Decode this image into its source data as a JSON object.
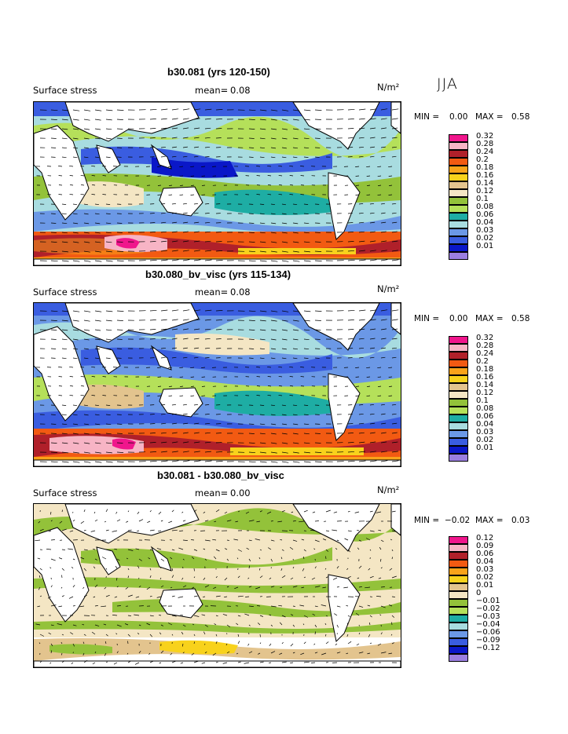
{
  "season": "JJA",
  "panels": [
    {
      "title": "b30.081 (yrs 120-150)",
      "field_label": "Surface stress",
      "mean_label": "mean=",
      "mean_value": "0.08",
      "units": "N/m²",
      "min_label": "MIN =",
      "min_value": "0.00",
      "max_label": "MAX =",
      "max_value": "0.58",
      "legend": [
        {
          "label": "0.32",
          "color": "#f0168c"
        },
        {
          "label": "0.28",
          "color": "#f7b4c5"
        },
        {
          "label": "0.24",
          "color": "#b0202a"
        },
        {
          "label": "0.2",
          "color": "#f25a12"
        },
        {
          "label": "0.18",
          "color": "#f9a31a"
        },
        {
          "label": "0.16",
          "color": "#f8d21c"
        },
        {
          "label": "0.14",
          "color": "#e3c48e"
        },
        {
          "label": "0.12",
          "color": "#f4e6c4"
        },
        {
          "label": "0.1",
          "color": "#93c23a"
        },
        {
          "label": "0.08",
          "color": "#b5e05a"
        },
        {
          "label": "0.06",
          "color": "#1eada4"
        },
        {
          "label": "0.04",
          "color": "#a8dce0"
        },
        {
          "label": "0.03",
          "color": "#6b98e6"
        },
        {
          "label": "0.02",
          "color": "#3a5de0"
        },
        {
          "label": "0.01",
          "color": "#0a17c8"
        },
        {
          "label": "",
          "color": "#9b7fe0"
        }
      ]
    },
    {
      "title": "b30.080_bv_visc (yrs 115-134)",
      "field_label": "Surface stress",
      "mean_label": "mean=",
      "mean_value": "0.08",
      "units": "N/m²",
      "min_label": "MIN =",
      "min_value": "0.00",
      "max_label": "MAX =",
      "max_value": "0.58",
      "legend": [
        {
          "label": "0.32",
          "color": "#f0168c"
        },
        {
          "label": "0.28",
          "color": "#f7b4c5"
        },
        {
          "label": "0.24",
          "color": "#b0202a"
        },
        {
          "label": "0.2",
          "color": "#f25a12"
        },
        {
          "label": "0.18",
          "color": "#f9a31a"
        },
        {
          "label": "0.16",
          "color": "#f8d21c"
        },
        {
          "label": "0.14",
          "color": "#e3c48e"
        },
        {
          "label": "0.12",
          "color": "#f4e6c4"
        },
        {
          "label": "0.1",
          "color": "#93c23a"
        },
        {
          "label": "0.08",
          "color": "#b5e05a"
        },
        {
          "label": "0.06",
          "color": "#1eada4"
        },
        {
          "label": "0.04",
          "color": "#a8dce0"
        },
        {
          "label": "0.03",
          "color": "#6b98e6"
        },
        {
          "label": "0.02",
          "color": "#3a5de0"
        },
        {
          "label": "0.01",
          "color": "#0a17c8"
        },
        {
          "label": "",
          "color": "#9b7fe0"
        }
      ]
    },
    {
      "title": "b30.081 - b30.080_bv_visc",
      "field_label": "Surface stress",
      "mean_label": "mean=",
      "mean_value": "0.00",
      "units": "N/m²",
      "min_label": "MIN =",
      "min_value": "−0.02",
      "max_label": "MAX =",
      "max_value": "0.03",
      "legend": [
        {
          "label": "0.12",
          "color": "#f0168c"
        },
        {
          "label": "0.09",
          "color": "#f7b4c5"
        },
        {
          "label": "0.06",
          "color": "#b0202a"
        },
        {
          "label": "0.04",
          "color": "#f25a12"
        },
        {
          "label": "0.03",
          "color": "#f9a31a"
        },
        {
          "label": "0.02",
          "color": "#f8d21c"
        },
        {
          "label": "0.01",
          "color": "#e3c48e"
        },
        {
          "label": "0",
          "color": "#f4e6c4"
        },
        {
          "label": "−0.01",
          "color": "#93c23a"
        },
        {
          "label": "−0.02",
          "color": "#b5e05a"
        },
        {
          "label": "−0.03",
          "color": "#1eada4"
        },
        {
          "label": "−0.04",
          "color": "#a8dce0"
        },
        {
          "label": "−0.06",
          "color": "#6b98e6"
        },
        {
          "label": "−0.09",
          "color": "#3a5de0"
        },
        {
          "label": "−0.12",
          "color": "#0a17c8"
        },
        {
          "label": "",
          "color": "#9b7fe0"
        }
      ]
    }
  ]
}
